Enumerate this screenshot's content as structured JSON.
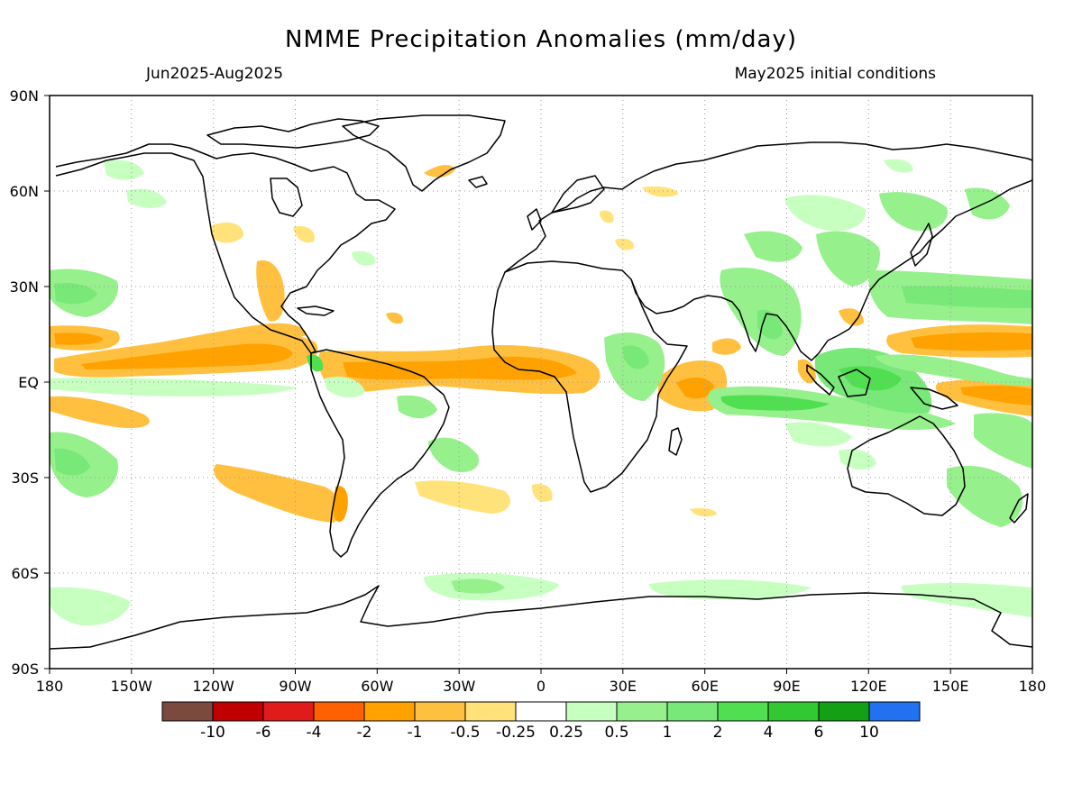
{
  "title": "NMME Precipitation Anomalies (mm/day)",
  "subtitle_left": "Jun2025-Aug2025",
  "subtitle_right": "May2025 initial conditions",
  "map": {
    "projection": "cylindrical-equidistant",
    "lon_range": [
      -180,
      180
    ],
    "lat_range": [
      -90,
      90
    ],
    "grid": "dotted",
    "lat_labels": [
      "90N",
      "60N",
      "30N",
      "EQ",
      "30S",
      "60S",
      "90S"
    ],
    "lon_labels": [
      "180",
      "150W",
      "120W",
      "90W",
      "60W",
      "30W",
      "0",
      "30E",
      "60E",
      "90E",
      "120E",
      "150E",
      "180"
    ]
  },
  "legend": {
    "colors": [
      "#7a4a3f",
      "#c00000",
      "#e11a1a",
      "#ff6000",
      "#ffa200",
      "#ffc040",
      "#ffe27a",
      "#ffffff",
      "#c6ffc0",
      "#96f08c",
      "#78e878",
      "#50df50",
      "#32c832",
      "#14a014",
      "#2271f0"
    ],
    "labels": [
      "-10",
      "-6",
      "-4",
      "-2",
      "-1",
      "-0.5",
      "-0.25",
      "0.25",
      "0.5",
      "1",
      "2",
      "4",
      "6",
      "10"
    ]
  }
}
